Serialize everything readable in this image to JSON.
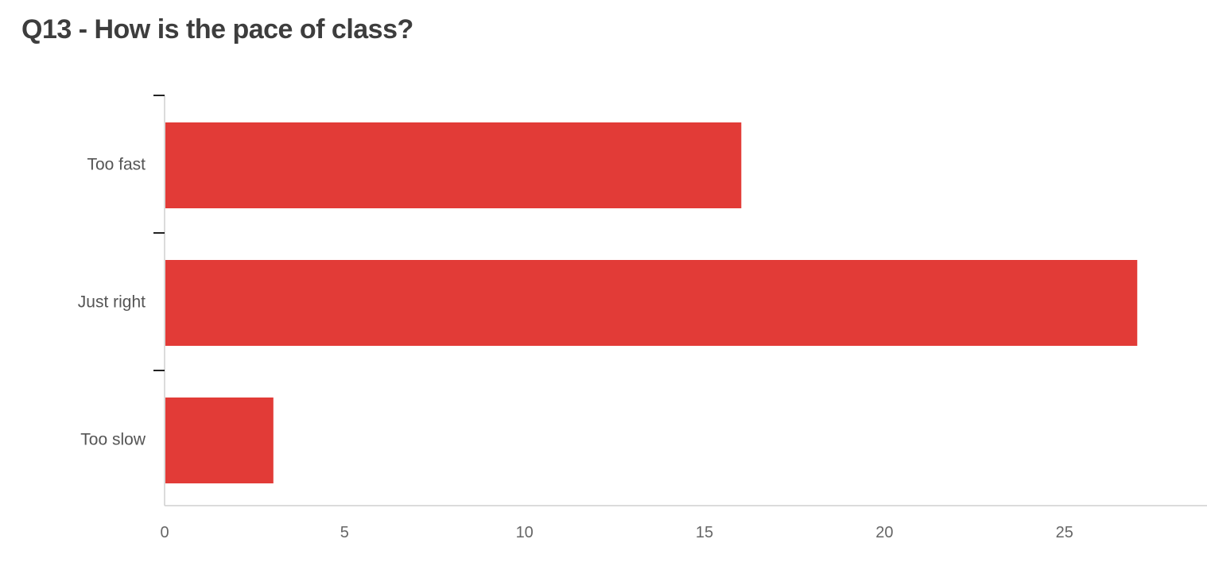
{
  "chart_data": {
    "type": "bar",
    "orientation": "horizontal",
    "title": "Q13 - How is the pace of class?",
    "categories": [
      "Too fast",
      "Just right",
      "Too slow"
    ],
    "values": [
      16,
      27,
      3
    ],
    "xlabel": "",
    "ylabel": "",
    "xlim": [
      0,
      29
    ],
    "xticks": [
      "0",
      "5",
      "10",
      "15",
      "20",
      "25"
    ],
    "grid": false,
    "legend": "none",
    "bar_color": "#e23b37"
  }
}
